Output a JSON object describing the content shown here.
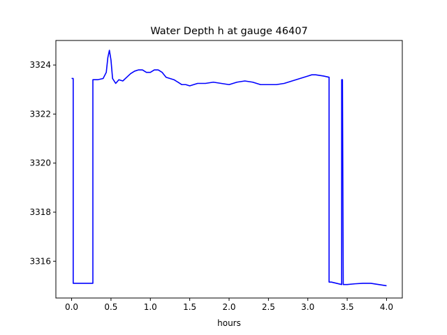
{
  "chart_data": {
    "type": "line",
    "title": "Water Depth h at gauge 46407",
    "xlabel": "hours",
    "ylabel": "",
    "xlim": [
      -0.2,
      4.2
    ],
    "ylim": [
      3314.5,
      3325.0
    ],
    "xticks": [
      0.0,
      0.5,
      1.0,
      1.5,
      2.0,
      2.5,
      3.0,
      3.5,
      4.0
    ],
    "xtick_labels": [
      "0.0",
      "0.5",
      "1.0",
      "1.5",
      "2.0",
      "2.5",
      "3.0",
      "3.5",
      "4.0"
    ],
    "yticks": [
      3316,
      3318,
      3320,
      3322,
      3324
    ],
    "ytick_labels": [
      "3316",
      "3318",
      "3320",
      "3322",
      "3324"
    ],
    "grid": false,
    "series": [
      {
        "color": "#0000ff",
        "x": [
          0.0,
          0.02,
          0.02,
          0.27,
          0.27,
          0.33,
          0.4,
          0.44,
          0.46,
          0.48,
          0.5,
          0.52,
          0.56,
          0.6,
          0.65,
          0.7,
          0.75,
          0.8,
          0.85,
          0.9,
          0.95,
          1.0,
          1.05,
          1.1,
          1.15,
          1.2,
          1.25,
          1.3,
          1.35,
          1.4,
          1.45,
          1.5,
          1.55,
          1.6,
          1.7,
          1.8,
          1.9,
          2.0,
          2.1,
          2.2,
          2.3,
          2.4,
          2.5,
          2.6,
          2.7,
          2.8,
          2.9,
          3.0,
          3.05,
          3.1,
          3.2,
          3.27,
          3.27,
          3.3,
          3.43,
          3.43,
          3.44,
          3.45,
          3.45,
          3.5,
          3.6,
          3.7,
          3.8,
          3.9,
          4.0
        ],
        "y": [
          3323.45,
          3323.45,
          3315.1,
          3315.1,
          3323.4,
          3323.4,
          3323.45,
          3323.7,
          3324.3,
          3324.6,
          3324.2,
          3323.45,
          3323.25,
          3323.4,
          3323.35,
          3323.5,
          3323.65,
          3323.75,
          3323.8,
          3323.8,
          3323.7,
          3323.7,
          3323.8,
          3323.8,
          3323.7,
          3323.5,
          3323.45,
          3323.4,
          3323.3,
          3323.2,
          3323.2,
          3323.15,
          3323.2,
          3323.25,
          3323.25,
          3323.3,
          3323.25,
          3323.2,
          3323.3,
          3323.35,
          3323.3,
          3323.2,
          3323.2,
          3323.2,
          3323.25,
          3323.35,
          3323.45,
          3323.55,
          3323.6,
          3323.6,
          3323.55,
          3323.5,
          3315.15,
          3315.15,
          3315.05,
          3323.4,
          3323.4,
          3315.05,
          3315.05,
          3315.05,
          3315.08,
          3315.1,
          3315.1,
          3315.05,
          3315.0
        ]
      }
    ]
  }
}
